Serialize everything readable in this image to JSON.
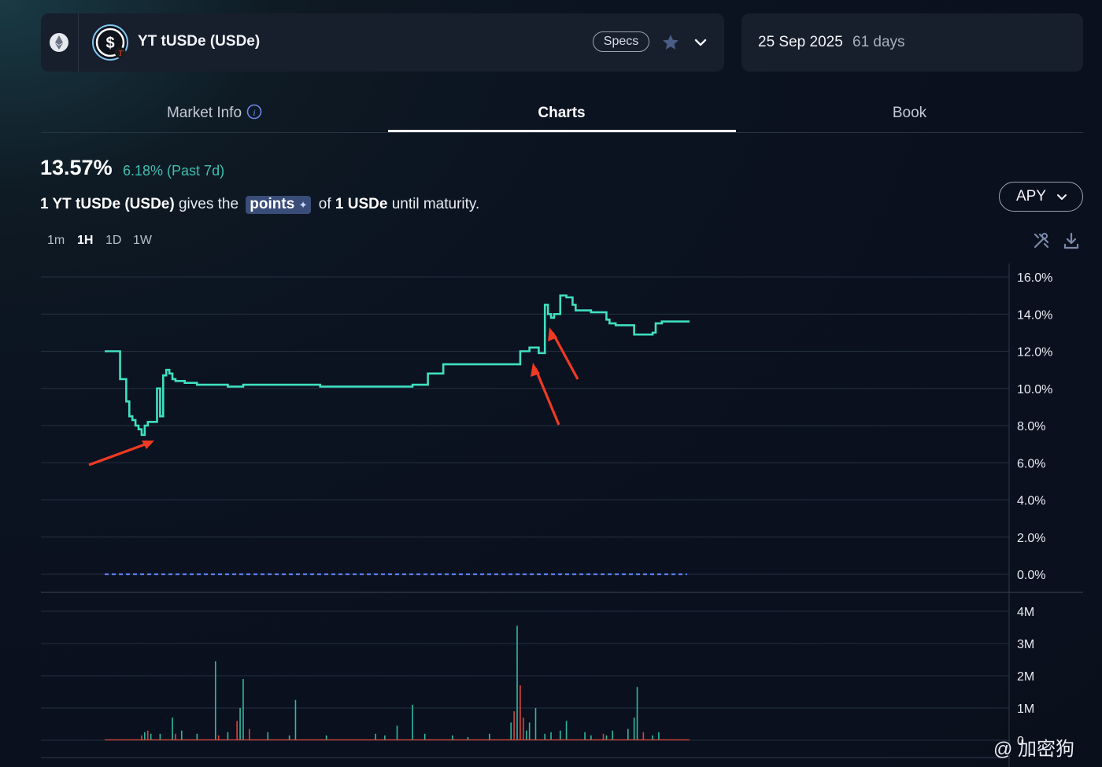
{
  "header": {
    "token_name": "YT tUSDe (USDe)",
    "specs_label": "Specs",
    "chain_icon": "ethereum-icon",
    "token_icon": "usde-token-icon",
    "maturity_date": "25 Sep 2025",
    "maturity_days": "61 days"
  },
  "tabs": [
    {
      "label": "Market Info",
      "active": false
    },
    {
      "label": "Charts",
      "active": true
    },
    {
      "label": "Book",
      "active": false
    }
  ],
  "summary": {
    "apy": "13.57%",
    "change": "6.18% (Past 7d)",
    "desc_prefix": "1 YT tUSDe (USDe)",
    "desc_mid": "gives the",
    "desc_chip": "points",
    "desc_of": "of",
    "desc_asset": "1 USDe",
    "desc_suffix": "until maturity."
  },
  "metric_select": "APY",
  "timeframes": [
    {
      "label": "1m",
      "active": false
    },
    {
      "label": "1H",
      "active": true
    },
    {
      "label": "1D",
      "active": false
    },
    {
      "label": "1W",
      "active": false
    }
  ],
  "watermark": "@ 加密狗",
  "colors": {
    "line": "#3fe0c0",
    "baseline": "#5b7cf0",
    "arrow": "#f03a24",
    "vol_up": "#2fb8a0",
    "vol_down": "#d8453a"
  },
  "chart_data": [
    {
      "type": "line",
      "yticks": [
        "16.0%",
        "14.0%",
        "12.0%",
        "10.0%",
        "8.0%",
        "6.0%",
        "4.0%",
        "2.0%",
        "0.0%"
      ],
      "ylim": [
        0,
        16
      ],
      "x": [
        0,
        4,
        5,
        7,
        8,
        9,
        10,
        11,
        12,
        13,
        14,
        15,
        17,
        18,
        19,
        20,
        21,
        22,
        23,
        24,
        26,
        30,
        35,
        40,
        45,
        50,
        55,
        60,
        70,
        80,
        85,
        90,
        95,
        100,
        105,
        110,
        118,
        121,
        130,
        135,
        138,
        140,
        141,
        143,
        144,
        145,
        146,
        148,
        150,
        152,
        153,
        158,
        161,
        163,
        164,
        166,
        172,
        176,
        178,
        179,
        181,
        190
      ],
      "y": [
        12.0,
        12.0,
        10.5,
        9.3,
        8.5,
        8.3,
        8.0,
        7.8,
        7.5,
        8.0,
        8.2,
        8.2,
        10.0,
        8.5,
        10.7,
        11.0,
        10.8,
        10.5,
        10.4,
        10.4,
        10.3,
        10.2,
        10.2,
        10.1,
        10.2,
        10.2,
        10.2,
        10.2,
        10.1,
        10.1,
        10.1,
        10.1,
        10.1,
        10.2,
        10.8,
        11.3,
        11.3,
        11.3,
        11.3,
        12.0,
        12.2,
        12.2,
        11.9,
        14.5,
        14.0,
        13.8,
        14.0,
        15.0,
        14.9,
        14.5,
        14.2,
        14.1,
        14.1,
        13.7,
        13.5,
        13.4,
        12.9,
        12.9,
        13.0,
        13.5,
        13.6,
        13.6
      ],
      "baseline": 0
    },
    {
      "type": "bar",
      "yticks": [
        "4M",
        "3M",
        "2M",
        "1M",
        "0"
      ],
      "ylim": [
        0,
        4
      ],
      "x": [
        12,
        13,
        14,
        15,
        18,
        22,
        23,
        25,
        30,
        36,
        37,
        40,
        43,
        44,
        45,
        47,
        53,
        60,
        62,
        72,
        88,
        91,
        95,
        100,
        104,
        113,
        118,
        125,
        132,
        133,
        134,
        135,
        136,
        137,
        138,
        140,
        143,
        145,
        148,
        150,
        156,
        158,
        162,
        163,
        165,
        170,
        172,
        173,
        175,
        178,
        180
      ],
      "values": [
        0.15,
        0.25,
        0.3,
        0.2,
        0.2,
        0.7,
        0.2,
        0.3,
        0.2,
        2.45,
        0.15,
        0.25,
        0.6,
        1.0,
        1.9,
        0.35,
        0.25,
        0.15,
        1.25,
        0.15,
        0.2,
        0.15,
        0.45,
        1.1,
        0.2,
        0.15,
        0.1,
        0.2,
        0.55,
        0.9,
        3.55,
        1.7,
        0.7,
        0.3,
        0.55,
        1.0,
        0.2,
        0.25,
        0.3,
        0.6,
        0.25,
        0.15,
        0.2,
        0.15,
        0.3,
        0.35,
        0.7,
        1.65,
        0.25,
        0.15,
        0.25
      ],
      "direction": [
        "down",
        "up",
        "down",
        "up",
        "up",
        "up",
        "down",
        "up",
        "up",
        "up",
        "down",
        "up",
        "down",
        "up",
        "up",
        "down",
        "up",
        "up",
        "up",
        "up",
        "up",
        "up",
        "up",
        "up",
        "up",
        "up",
        "up",
        "up",
        "up",
        "down",
        "up",
        "down",
        "down",
        "up",
        "up",
        "up",
        "up",
        "up",
        "up",
        "up",
        "up",
        "up",
        "down",
        "up",
        "up",
        "up",
        "up",
        "up",
        "down",
        "up",
        "up"
      ]
    }
  ]
}
